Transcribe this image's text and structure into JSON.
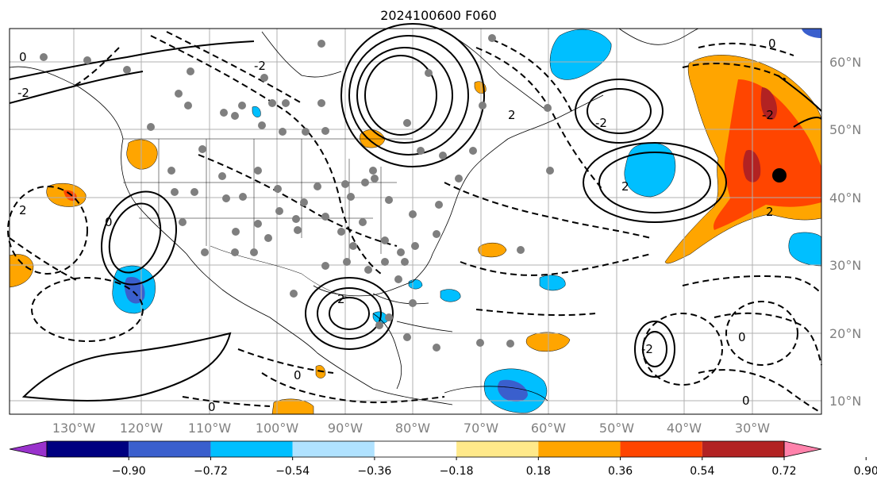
{
  "title": "2024100600 F060",
  "lon_labels": [
    "130°W",
    "120°W",
    "110°W",
    "100°W",
    "90°W",
    "80°W",
    "70°W",
    "60°W",
    "50°W",
    "40°W",
    "30°W"
  ],
  "lat_labels": [
    "60°N",
    "50°N",
    "40°N",
    "30°N",
    "20°N",
    "10°N"
  ],
  "colorbar": {
    "colors": [
      "#9932cc",
      "#000080",
      "#3a5fcd",
      "#00bfff",
      "#b0e2ff",
      "#ffffff",
      "#ffe98a",
      "#ffa500",
      "#ff4500",
      "#b22222",
      "#ff82ab"
    ],
    "ticks": [
      "−0.90",
      "−0.72",
      "−0.54",
      "−0.36",
      "−0.18",
      "0.18",
      "0.36",
      "0.54",
      "0.72",
      "0.90"
    ]
  },
  "contour_labels": [
    "0",
    "-2",
    "0",
    "2",
    "-2",
    "0",
    "2",
    "0",
    "-2",
    "2",
    "0",
    "-2",
    "0",
    "2",
    "-2",
    "0",
    "2"
  ]
}
